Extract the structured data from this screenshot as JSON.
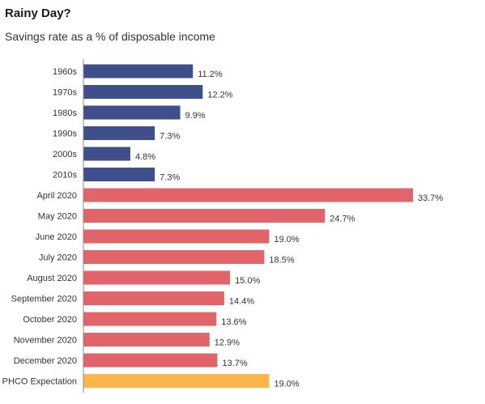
{
  "chart_data": {
    "type": "bar",
    "orientation": "horizontal",
    "title": "Rainy Day?",
    "subtitle": "Savings rate as a % of disposable income",
    "xlabel": "",
    "ylabel": "",
    "xlim": [
      0,
      33.7
    ],
    "grid": false,
    "categories": [
      "1960s",
      "1970s",
      "1980s",
      "1990s",
      "2000s",
      "2010s",
      "April 2020",
      "May 2020",
      "June 2020",
      "July 2020",
      "August 2020",
      "September 2020",
      "October 2020",
      "November 2020",
      "December 2020",
      "PHCO Expectation"
    ],
    "values": [
      11.2,
      12.2,
      9.9,
      7.3,
      4.8,
      7.3,
      33.7,
      24.7,
      19.0,
      18.5,
      15.0,
      14.4,
      13.6,
      12.9,
      13.7,
      19.0
    ],
    "value_labels": [
      "11.2%",
      "12.2%",
      "9.9%",
      "7.3%",
      "4.8%",
      "7.3%",
      "33.7%",
      "24.7%",
      "19.0%",
      "18.5%",
      "15.0%",
      "14.4%",
      "13.6%",
      "12.9%",
      "13.7%",
      "19.0%"
    ],
    "bar_groups": [
      "decade",
      "decade",
      "decade",
      "decade",
      "decade",
      "decade",
      "month",
      "month",
      "month",
      "month",
      "month",
      "month",
      "month",
      "month",
      "month",
      "expectation"
    ]
  },
  "colors": {
    "decade": "#3f4f8c",
    "month": "#e06469",
    "expectation": "#fbb549",
    "axis": "#888888",
    "text": "#333333"
  }
}
